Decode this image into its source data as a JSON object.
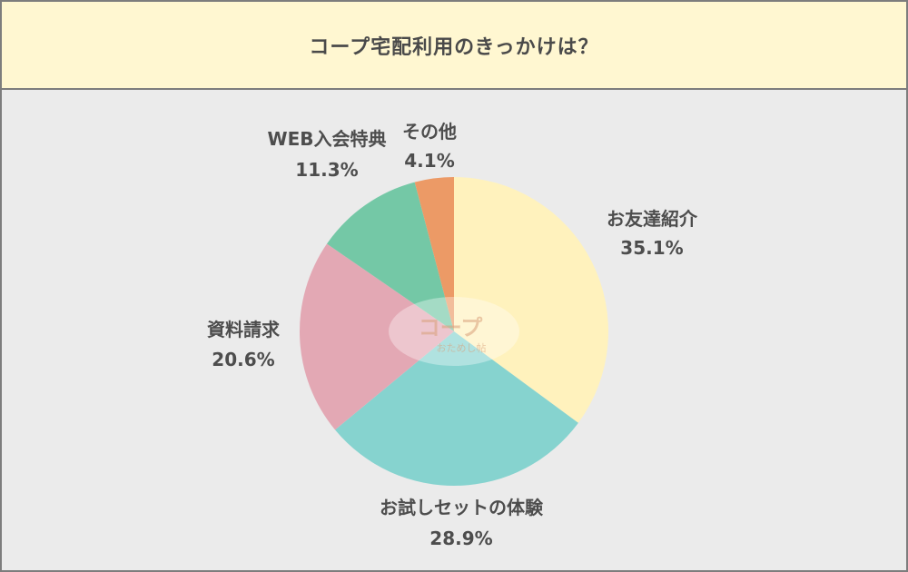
{
  "title": "コープ宅配利用のきっかけは？",
  "watermark": {
    "main": "コープ",
    "sub": "おためし帖"
  },
  "colors": {
    "header_bg": "#fff7d1",
    "panel_bg": "#ebebeb",
    "border": "#7d7d7d",
    "label_text": "#4d4d4d"
  },
  "chart_data": {
    "type": "pie",
    "start": "12 o'clock",
    "direction": "clockwise",
    "slices": [
      {
        "label": "お友達紹介",
        "value": 35.1,
        "display": "35.1%",
        "color": "#fff2bd"
      },
      {
        "label": "お試しセットの体験",
        "value": 28.9,
        "display": "28.9%",
        "color": "#86d3cf"
      },
      {
        "label": "資料請求",
        "value": 20.6,
        "display": "20.6%",
        "color": "#e3a8b4"
      },
      {
        "label": "WEB入会特典",
        "value": 11.3,
        "display": "11.3%",
        "color": "#74c8a6"
      },
      {
        "label": "その他",
        "value": 4.1,
        "display": "4.1%",
        "color": "#ec9a66"
      }
    ]
  }
}
